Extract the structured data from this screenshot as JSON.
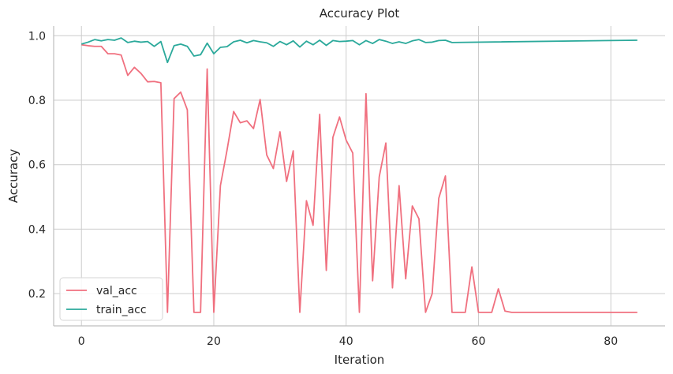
{
  "chart_data": {
    "type": "line",
    "title": "Accuracy Plot",
    "xlabel": "Iteration",
    "ylabel": "Accuracy",
    "xlim": [
      -4.2,
      88.2
    ],
    "ylim": [
      0.1,
      1.03
    ],
    "x_ticks": [
      0,
      20,
      40,
      60,
      80
    ],
    "y_ticks": [
      0.2,
      0.4,
      0.6,
      0.8,
      1.0
    ],
    "x_tick_labels": [
      "0",
      "20",
      "40",
      "60",
      "80"
    ],
    "y_tick_labels": [
      "0.2",
      "0.4",
      "0.6",
      "0.8",
      "1.0"
    ],
    "grid": true,
    "legend_position": "lower-left",
    "series": [
      {
        "name": "val_acc",
        "color": "#f0707f",
        "x": [
          0,
          1,
          2,
          3,
          4,
          5,
          6,
          7,
          8,
          9,
          10,
          11,
          12,
          13,
          14,
          15,
          16,
          17,
          18,
          19,
          20,
          21,
          22,
          23,
          24,
          25,
          26,
          27,
          28,
          29,
          30,
          31,
          32,
          33,
          34,
          35,
          36,
          37,
          38,
          39,
          40,
          41,
          42,
          43,
          44,
          45,
          46,
          47,
          48,
          49,
          50,
          51,
          52,
          53,
          54,
          55,
          56,
          57,
          58,
          59,
          60,
          61,
          62,
          63,
          64,
          65,
          84
        ],
        "y": [
          0.972,
          0.969,
          0.967,
          0.967,
          0.944,
          0.944,
          0.94,
          0.877,
          0.902,
          0.883,
          0.857,
          0.858,
          0.854,
          0.142,
          0.805,
          0.825,
          0.77,
          0.142,
          0.142,
          0.897,
          0.142,
          0.535,
          0.645,
          0.765,
          0.73,
          0.736,
          0.712,
          0.802,
          0.63,
          0.588,
          0.702,
          0.548,
          0.643,
          0.142,
          0.488,
          0.412,
          0.756,
          0.272,
          0.685,
          0.748,
          0.676,
          0.636,
          0.142,
          0.82,
          0.24,
          0.562,
          0.667,
          0.218,
          0.535,
          0.246,
          0.472,
          0.432,
          0.142,
          0.2,
          0.496,
          0.565,
          0.142,
          0.142,
          0.142,
          0.283,
          0.142,
          0.142,
          0.142,
          0.215,
          0.146,
          0.142,
          0.142
        ]
      },
      {
        "name": "train_acc",
        "color": "#2ba99b",
        "x": [
          0,
          1,
          2,
          3,
          4,
          5,
          6,
          7,
          8,
          9,
          10,
          11,
          12,
          13,
          14,
          15,
          16,
          17,
          18,
          19,
          20,
          21,
          22,
          23,
          24,
          25,
          26,
          27,
          28,
          29,
          30,
          31,
          32,
          33,
          34,
          35,
          36,
          37,
          38,
          39,
          40,
          41,
          42,
          43,
          44,
          45,
          46,
          47,
          48,
          49,
          50,
          51,
          52,
          53,
          54,
          55,
          56,
          84
        ],
        "y": [
          0.974,
          0.98,
          0.988,
          0.984,
          0.988,
          0.986,
          0.993,
          0.979,
          0.983,
          0.98,
          0.982,
          0.967,
          0.982,
          0.917,
          0.969,
          0.974,
          0.967,
          0.937,
          0.941,
          0.977,
          0.944,
          0.964,
          0.966,
          0.981,
          0.986,
          0.978,
          0.985,
          0.981,
          0.978,
          0.967,
          0.982,
          0.972,
          0.984,
          0.965,
          0.983,
          0.972,
          0.986,
          0.97,
          0.985,
          0.982,
          0.983,
          0.985,
          0.972,
          0.985,
          0.976,
          0.988,
          0.983,
          0.976,
          0.981,
          0.976,
          0.984,
          0.988,
          0.979,
          0.98,
          0.985,
          0.986,
          0.979,
          0.986
        ]
      }
    ]
  }
}
